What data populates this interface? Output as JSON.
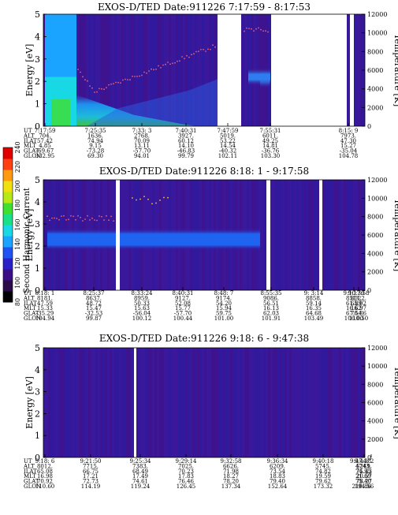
{
  "figure": {
    "ylabel": "Energy [eV]",
    "y2label": "Temperature [K]",
    "ylim": [
      0,
      5
    ],
    "y2lim": [
      0,
      12000
    ],
    "yticks": [
      "0",
      "1",
      "2",
      "3",
      "4",
      "5"
    ],
    "y2ticks": [
      "0",
      "2000",
      "4000",
      "6000",
      "8000",
      "10000",
      "12000"
    ],
    "row_labels": [
      "UT",
      "ALT",
      "ILAT",
      "MLT",
      "GLAT",
      "GLON"
    ]
  },
  "colorbar": {
    "label": "Second Harmonic Current",
    "ticks": [
      "80",
      "100",
      "120",
      "140",
      "160",
      "180",
      "200",
      "220",
      "240"
    ],
    "colors": [
      "#000000",
      "#2b0a4a",
      "#3a0e86",
      "#2a20c8",
      "#1f52f0",
      "#1aa4ff",
      "#18d8e6",
      "#1ae08a",
      "#40e030",
      "#b8e818",
      "#f0e010",
      "#ff9a10",
      "#ff4010",
      "#e00000"
    ]
  },
  "chart_data": [
    {
      "type": "heatmap",
      "title": "EXOS-D/TED   Date:911226  7:17:59 - 8:17:53",
      "ylabel": "Energy [eV]",
      "y2label": "Temperature [K]",
      "ylim": [
        0,
        5
      ],
      "y2lim": [
        0,
        12000
      ],
      "columns": [
        [
          "7:17:59",
          "704.",
          "57.42",
          "4.85",
          "-69.67",
          "332.95"
        ],
        [
          "7:25:35",
          "1636.",
          "74.94",
          "9.15",
          "-73.28",
          "69.30"
        ],
        [
          "7:33: 3",
          "2768.",
          "70.09",
          "13.11",
          "-57.70",
          "94.01"
        ],
        [
          "7:40:31",
          "3927.",
          "60.12",
          "14.10",
          "-46.83",
          "99.79"
        ],
        [
          "7:47:59",
          "5019.",
          "53.22",
          "14.54",
          "-40.32",
          "102.11"
        ],
        [
          "7:55:31",
          "6011.",
          "49.25",
          "14.81",
          "-36.76",
          "103.30"
        ],
        [
          "8:15: 9",
          "7973.",
          "47.30",
          "15.27",
          "-35.04",
          "104.78"
        ]
      ]
    },
    {
      "type": "heatmap",
      "title": "EXOS-D/TED   Date:911226  8:18: 1 - 9:17:58",
      "ylabel": "Energy [eV]",
      "y2label": "Temperature [K]",
      "ylim": [
        0,
        5
      ],
      "y2lim": [
        0,
        12000
      ],
      "columns": [
        [
          "8:18: 1",
          "8181.",
          "47.59",
          "15.33",
          "-35.29",
          "104.94"
        ],
        [
          "8:25:37",
          "8637.",
          "48.72",
          "15.47",
          "-32.53",
          "99.87"
        ],
        [
          "8:33:24",
          "8959.",
          "50.33",
          "15.63",
          "-56.04",
          "100.12"
        ],
        [
          "8:40:31",
          "9127.",
          "52.08",
          "15.77",
          "-57.70",
          "100.44"
        ],
        [
          "8:48: 7",
          "9174.",
          "54.20",
          "15.94",
          "59.75",
          "101.00"
        ],
        [
          "8:55:35",
          "9086.",
          "56.51",
          "16.13",
          "62.03",
          "101.91"
        ],
        [
          "9: 3:14",
          "8858.",
          "59.14",
          "16.35",
          "64.68",
          "103.49"
        ],
        [
          "9:10:30",
          "8511.",
          "61.89",
          "16.62",
          "67.54",
          "106.00"
        ],
        [
          "9:17:58",
          "8022.",
          "65.02",
          "16.97",
          "70.86",
          "110.50"
        ]
      ]
    },
    {
      "type": "heatmap",
      "title": "EXOS-D/TED   Date:911226  9:18: 6 - 9:47:38",
      "ylabel": "Energy [eV]",
      "y2label": "Temperature [K]",
      "ylim": [
        0,
        5
      ],
      "y2lim": [
        0,
        12000
      ],
      "columns": [
        [
          "9:18: 6",
          "8012.",
          "65.08",
          "16.98",
          "70.92",
          "110.60"
        ],
        [
          "9:21:50",
          "7715.",
          "66.75",
          "17.21",
          "72.73",
          "114.19"
        ],
        [
          "9:25:34",
          "7383.",
          "68.49",
          "17.49",
          "74.61",
          "119.24"
        ],
        [
          "9:29:14",
          "7025.",
          "70.23",
          "17.83",
          "76.46",
          "126.45"
        ],
        [
          "9:32:58",
          "6626.",
          "71.98",
          "18.27",
          "78.20",
          "137.34"
        ],
        [
          "9:36:34",
          "6209.",
          "73.54",
          "18.83",
          "79.40",
          "152.64"
        ],
        [
          "9:40:18",
          "5745.",
          "74.82",
          "19.59",
          "79.62",
          "173.32"
        ],
        [
          "9:44: 2",
          "5249.",
          "75.43",
          "20.57",
          "78.27",
          "194.56"
        ],
        [
          "9:47:38",
          "4743.",
          "74.95",
          "21.69",
          "75.40",
          "210.86"
        ]
      ]
    }
  ]
}
